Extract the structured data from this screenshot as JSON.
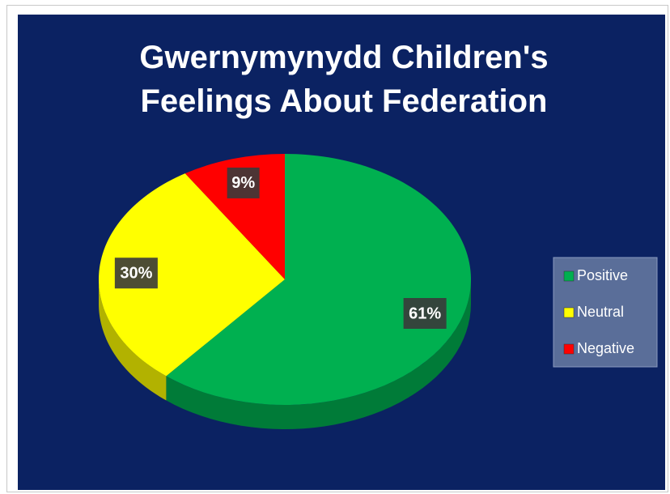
{
  "chart_data": {
    "type": "pie",
    "title": "Gwernymynydd Children's Feelings About Federation",
    "categories": [
      "Positive",
      "Neutral",
      "Negative"
    ],
    "values": [
      61,
      30,
      9
    ],
    "value_labels": [
      "61%",
      "30%",
      "9%"
    ],
    "colors": [
      "#00b050",
      "#ffff00",
      "#ff0000"
    ],
    "legend": "right"
  }
}
